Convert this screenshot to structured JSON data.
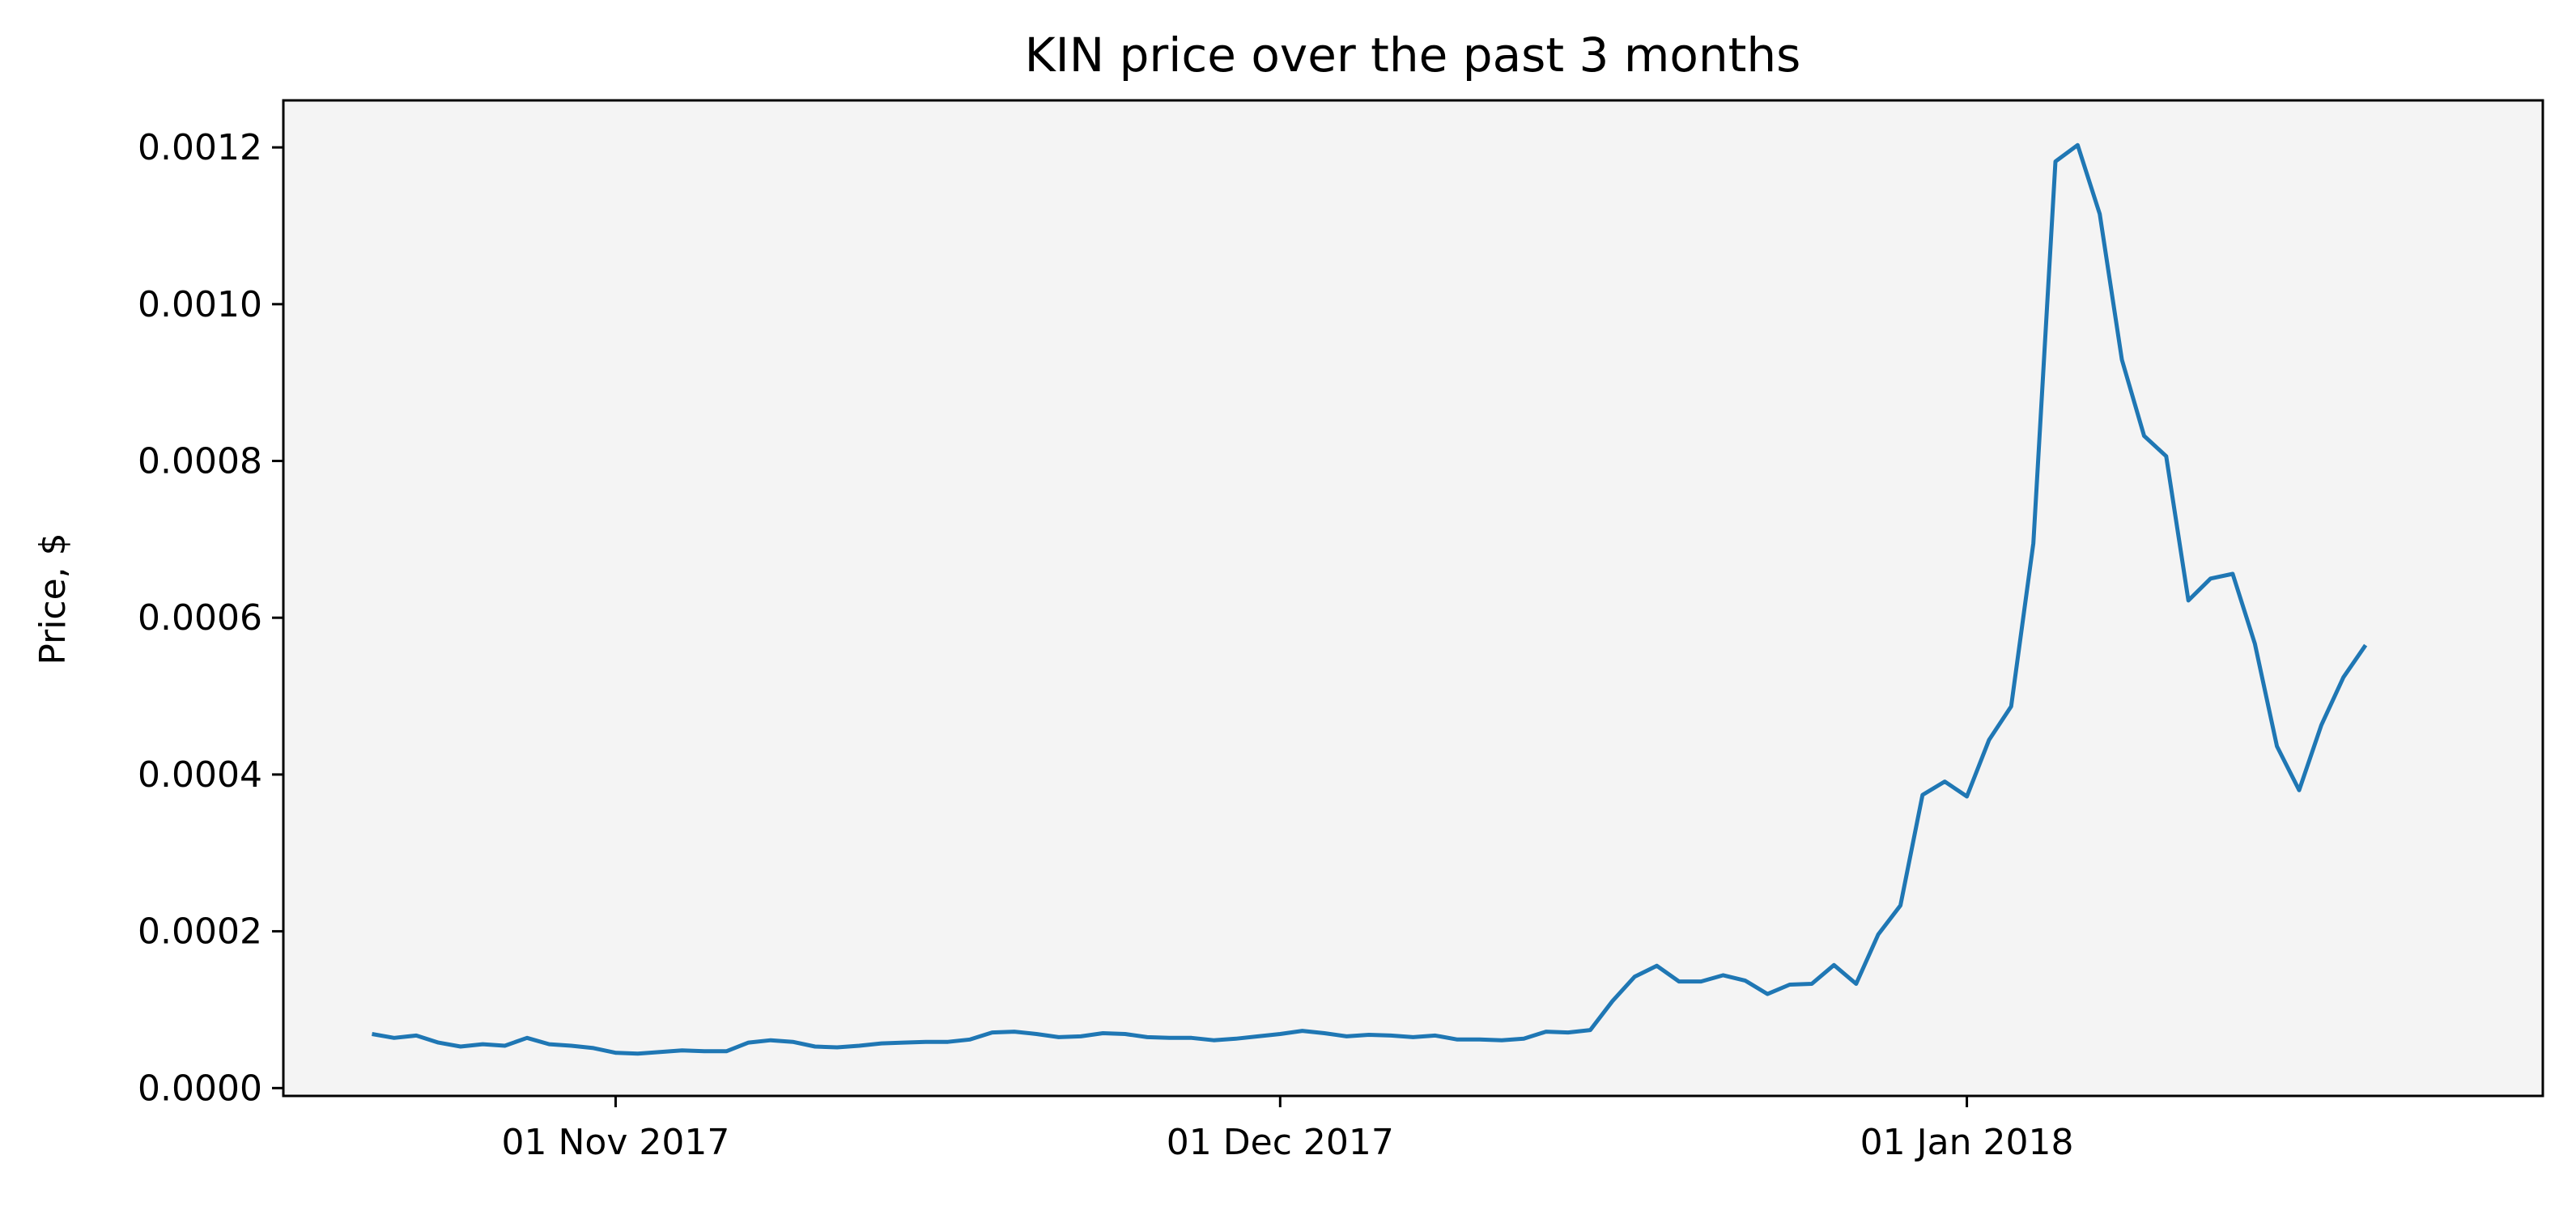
{
  "chart_data": {
    "type": "line",
    "title": "KIN price over the past 3 months",
    "xlabel": "",
    "ylabel": "Price, $",
    "x_tick_labels": [
      "01 Nov 2017",
      "01 Dec 2017",
      "01 Jan 2018"
    ],
    "y_tick_labels": [
      "0.0000",
      "0.0002",
      "0.0004",
      "0.0006",
      "0.0008",
      "0.0010",
      "0.0012"
    ],
    "y_ticks": [
      0,
      0.0002,
      0.0004,
      0.0006,
      0.0008,
      0.001,
      0.0012
    ],
    "ylim": [
      -1e-05,
      0.00126
    ],
    "xlim": [
      "2017-10-17",
      "2018-01-27"
    ],
    "grid": false,
    "colors": {
      "line": "#1f77b4",
      "plot_background": "#f4f4f4"
    },
    "series": [
      {
        "x_start": "2017-10-21",
        "values": [
          6.9e-05,
          6.4e-05,
          6.7e-05,
          5.8e-05,
          5.3e-05,
          5.6e-05,
          5.4e-05,
          6.4e-05,
          5.6e-05,
          5.4e-05,
          5.1e-05,
          4.5e-05,
          4.4e-05,
          4.6e-05,
          4.8e-05,
          4.7e-05,
          4.7e-05,
          5.8e-05,
          6.1e-05,
          5.9e-05,
          5.3e-05,
          5.2e-05,
          5.4e-05,
          5.7e-05,
          5.8e-05,
          5.9e-05,
          5.9e-05,
          6.2e-05,
          7.1e-05,
          7.2e-05,
          6.9e-05,
          6.5e-05,
          6.6e-05,
          7e-05,
          6.9e-05,
          6.5e-05,
          6.4e-05,
          6.4e-05,
          6.1e-05,
          6.3e-05,
          6.6e-05,
          6.9e-05,
          7.3e-05,
          7e-05,
          6.6e-05,
          6.8e-05,
          6.7e-05,
          6.5e-05,
          6.7e-05,
          6.2e-05,
          6.2e-05,
          6.1e-05,
          6.3e-05,
          7.2e-05,
          7.1e-05,
          7.4e-05,
          0.000111,
          0.000142,
          0.000156,
          0.000136,
          0.000136,
          0.000144,
          0.000137,
          0.00012,
          0.000132,
          0.000133,
          0.000157,
          0.000133,
          0.000196,
          0.000233,
          0.000374,
          0.000391,
          0.000372,
          0.000444,
          0.000487,
          0.000695,
          0.001182,
          0.001203,
          0.001115,
          0.000929,
          0.000832,
          0.000806,
          0.000622,
          0.00065,
          0.000656,
          0.000567,
          0.000436,
          0.00038,
          0.000463,
          0.000524,
          0.000565
        ]
      }
    ]
  }
}
